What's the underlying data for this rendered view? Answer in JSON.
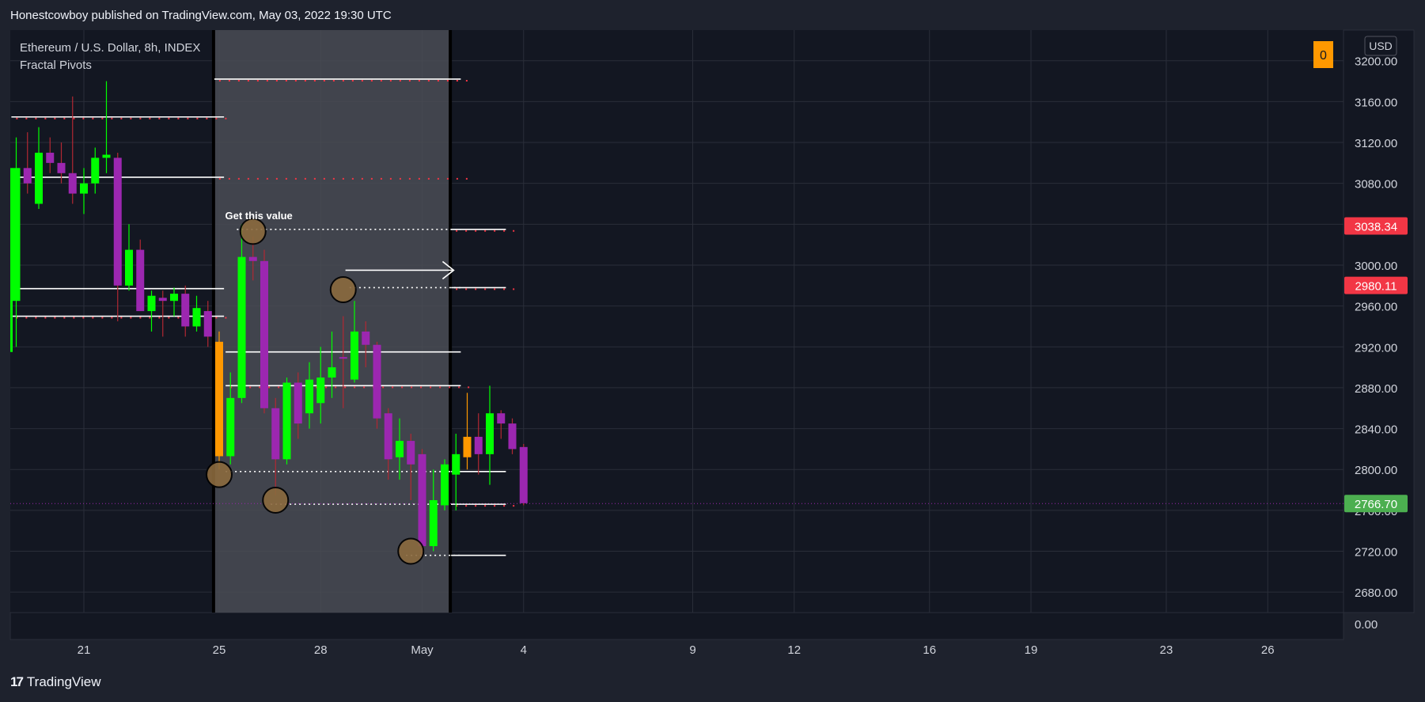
{
  "header": {
    "publish_line": "Honestcowboy published on TradingView.com, May 03, 2022 19:30 UTC"
  },
  "legend": {
    "symbol": "Ethereum / U.S. Dollar, 8h, INDEX",
    "indicator": "Fractal Pivots"
  },
  "footer": {
    "brand": "TradingView",
    "logo_icon": "tradingview-logo-icon"
  },
  "colors": {
    "background": "#131722",
    "panel": "#1e222d",
    "grid": "#2a2e39",
    "bull": "#00ff00",
    "bear": "#9c27b0",
    "orange": "#ff9800",
    "highlight": "#4a4c55",
    "pivot": "#8b6a3e",
    "red_tag": "#f23645",
    "green_tag": "#4caf50"
  },
  "chart_data": {
    "type": "candlestick",
    "currency": "USD",
    "ylim": [
      2660,
      3230
    ],
    "ytick_labels": [
      "3200.00",
      "3160.00",
      "3120.00",
      "3080.00",
      "3040.00",
      "3000.00",
      "2960.00",
      "2920.00",
      "2880.00",
      "2840.00",
      "2800.00",
      "2760.00",
      "2720.00",
      "2680.00"
    ],
    "ytick_values": [
      3200,
      3160,
      3120,
      3080,
      3040,
      3000,
      2960,
      2920,
      2880,
      2840,
      2800,
      2760,
      2720,
      2680
    ],
    "bottom_axis_label": "0.00",
    "xticks": [
      {
        "label": "21",
        "bar": 6
      },
      {
        "label": "25",
        "bar": 18
      },
      {
        "label": "28",
        "bar": 27
      },
      {
        "label": "May",
        "bar": 36
      },
      {
        "label": "4",
        "bar": 45
      },
      {
        "label": "9",
        "bar": 60
      },
      {
        "label": "12",
        "bar": 69
      },
      {
        "label": "16",
        "bar": 81
      },
      {
        "label": "19",
        "bar": 90
      },
      {
        "label": "23",
        "bar": 102
      },
      {
        "label": "26",
        "bar": 111
      }
    ],
    "candles": [
      {
        "o": 2965,
        "h": 3125,
        "l": 2920,
        "c": 3095,
        "color": "bull"
      },
      {
        "o": 3095,
        "h": 3130,
        "l": 3070,
        "c": 3080,
        "color": "bear"
      },
      {
        "o": 3060,
        "h": 3135,
        "l": 3055,
        "c": 3110,
        "color": "bull"
      },
      {
        "o": 3110,
        "h": 3125,
        "l": 3090,
        "c": 3100,
        "color": "bear"
      },
      {
        "o": 3100,
        "h": 3120,
        "l": 3080,
        "c": 3090,
        "color": "bear"
      },
      {
        "o": 3090,
        "h": 3165,
        "l": 3060,
        "c": 3070,
        "color": "bear"
      },
      {
        "o": 3070,
        "h": 3095,
        "l": 3050,
        "c": 3080,
        "color": "bull"
      },
      {
        "o": 3080,
        "h": 3115,
        "l": 3070,
        "c": 3105,
        "color": "bull"
      },
      {
        "o": 3105,
        "h": 3180,
        "l": 3090,
        "c": 3108,
        "color": "bull"
      },
      {
        "o": 3105,
        "h": 3110,
        "l": 2945,
        "c": 2980,
        "color": "bear"
      },
      {
        "o": 2980,
        "h": 3040,
        "l": 2975,
        "c": 3015,
        "color": "bull"
      },
      {
        "o": 3015,
        "h": 3025,
        "l": 2960,
        "c": 2955,
        "color": "bear"
      },
      {
        "o": 2955,
        "h": 2975,
        "l": 2935,
        "c": 2970,
        "color": "bull"
      },
      {
        "o": 2968,
        "h": 2975,
        "l": 2930,
        "c": 2965,
        "color": "bear"
      },
      {
        "o": 2965,
        "h": 2978,
        "l": 2950,
        "c": 2972,
        "color": "bull"
      },
      {
        "o": 2972,
        "h": 2980,
        "l": 2930,
        "c": 2940,
        "color": "bear"
      },
      {
        "o": 2940,
        "h": 2970,
        "l": 2935,
        "c": 2958,
        "color": "bull"
      },
      {
        "o": 2955,
        "h": 2965,
        "l": 2920,
        "c": 2930,
        "color": "bear"
      },
      {
        "o": 2925,
        "h": 2935,
        "l": 2800,
        "c": 2813,
        "color": "orange"
      },
      {
        "o": 2813,
        "h": 2895,
        "l": 2805,
        "c": 2870,
        "color": "bull"
      },
      {
        "o": 2870,
        "h": 3040,
        "l": 2865,
        "c": 3008,
        "color": "bull"
      },
      {
        "o": 3008,
        "h": 3028,
        "l": 2985,
        "c": 3004,
        "color": "bear"
      },
      {
        "o": 3004,
        "h": 3015,
        "l": 2855,
        "c": 2860,
        "color": "bear"
      },
      {
        "o": 2860,
        "h": 2870,
        "l": 2775,
        "c": 2810,
        "color": "bear"
      },
      {
        "o": 2810,
        "h": 2890,
        "l": 2805,
        "c": 2885,
        "color": "bull"
      },
      {
        "o": 2885,
        "h": 2895,
        "l": 2830,
        "c": 2845,
        "color": "bear"
      },
      {
        "o": 2855,
        "h": 2905,
        "l": 2840,
        "c": 2888,
        "color": "bull"
      },
      {
        "o": 2865,
        "h": 2920,
        "l": 2845,
        "c": 2890,
        "color": "bull"
      },
      {
        "o": 2890,
        "h": 2935,
        "l": 2870,
        "c": 2900,
        "color": "bull"
      },
      {
        "o": 2910,
        "h": 2950,
        "l": 2860,
        "c": 2910,
        "color": "bear"
      },
      {
        "o": 2888,
        "h": 2965,
        "l": 2885,
        "c": 2935,
        "color": "bull"
      },
      {
        "o": 2935,
        "h": 2945,
        "l": 2900,
        "c": 2922,
        "color": "bear"
      },
      {
        "o": 2922,
        "h": 2925,
        "l": 2840,
        "c": 2850,
        "color": "bear"
      },
      {
        "o": 2855,
        "h": 2860,
        "l": 2790,
        "c": 2810,
        "color": "bear"
      },
      {
        "o": 2812,
        "h": 2850,
        "l": 2790,
        "c": 2828,
        "color": "bull"
      },
      {
        "o": 2828,
        "h": 2835,
        "l": 2770,
        "c": 2805,
        "color": "bear"
      },
      {
        "o": 2815,
        "h": 2820,
        "l": 2715,
        "c": 2725,
        "color": "bear"
      },
      {
        "o": 2725,
        "h": 2800,
        "l": 2720,
        "c": 2770,
        "color": "bull"
      },
      {
        "o": 2765,
        "h": 2810,
        "l": 2760,
        "c": 2805,
        "color": "bull"
      },
      {
        "o": 2795,
        "h": 2835,
        "l": 2760,
        "c": 2815,
        "color": "bull"
      },
      {
        "o": 2812,
        "h": 2875,
        "l": 2800,
        "c": 2832,
        "color": "orange"
      },
      {
        "o": 2832,
        "h": 2855,
        "l": 2795,
        "c": 2815,
        "color": "bear"
      },
      {
        "o": 2815,
        "h": 2882,
        "l": 2785,
        "c": 2855,
        "color": "bull"
      },
      {
        "o": 2855,
        "h": 2858,
        "l": 2830,
        "c": 2845,
        "color": "bear"
      },
      {
        "o": 2845,
        "h": 2850,
        "l": 2815,
        "c": 2820,
        "color": "bear"
      },
      {
        "o": 2822,
        "h": 2825,
        "l": 2765,
        "c": 2767,
        "color": "bear"
      }
    ],
    "highlight_bars": [
      18,
      38
    ],
    "pivot_circles": [
      {
        "bar": 21,
        "price": 3033
      },
      {
        "bar": 29,
        "price": 2976
      },
      {
        "bar": 18,
        "price": 2795
      },
      {
        "bar": 23,
        "price": 2770
      },
      {
        "bar": 35,
        "price": 2720
      }
    ],
    "level_lines": [
      {
        "price": 3182,
        "from": 18,
        "to": 39,
        "style": "solid-dotted"
      },
      {
        "price": 3145,
        "from": 0,
        "to": 18,
        "style": "solid-dotted"
      },
      {
        "price": 3086,
        "from": 0,
        "to": 18,
        "style": "solid"
      },
      {
        "price": 3086,
        "from": 18,
        "to": 39,
        "style": "dots"
      },
      {
        "price": 3035,
        "from": 20,
        "to": 39,
        "style": "dotted"
      },
      {
        "price": 3035,
        "from": 39,
        "to": 43,
        "style": "solid-dotted"
      },
      {
        "price": 2977,
        "from": 0,
        "to": 18,
        "style": "solid"
      },
      {
        "price": 2978,
        "from": 30,
        "to": 39,
        "style": "dotted"
      },
      {
        "price": 2978,
        "from": 39,
        "to": 43,
        "style": "solid-dotted"
      },
      {
        "price": 2950,
        "from": 0,
        "to": 18,
        "style": "solid-dotted"
      },
      {
        "price": 2915,
        "from": 19,
        "to": 39,
        "style": "solid"
      },
      {
        "price": 2882,
        "from": 19,
        "to": 39,
        "style": "solid-dotted"
      },
      {
        "price": 2798,
        "from": 19,
        "to": 39,
        "style": "dotted"
      },
      {
        "price": 2798,
        "from": 39,
        "to": 43,
        "style": "solid"
      },
      {
        "price": 2766,
        "from": 23,
        "to": 39,
        "style": "dotted"
      },
      {
        "price": 2766,
        "from": 39,
        "to": 43,
        "style": "solid-dotted"
      },
      {
        "price": 2716,
        "from": 35,
        "to": 39,
        "style": "dotted"
      },
      {
        "price": 2716,
        "from": 39,
        "to": 43,
        "style": "solid"
      }
    ],
    "annotation": {
      "text": "Get this value",
      "bar": 20,
      "price": 3045
    },
    "arrow": {
      "from_bar": 29.2,
      "to_bar": 38.8,
      "price": 2995
    },
    "price_tags": [
      {
        "label": "3038.34",
        "price": 3038.34,
        "color": "red_tag"
      },
      {
        "label": "2980.11",
        "price": 2980.11,
        "color": "red_tag"
      },
      {
        "label": "2766.70",
        "price": 2766.7,
        "color": "green_tag"
      }
    ],
    "last_price_line": 2766.7,
    "top_badge": "0"
  }
}
